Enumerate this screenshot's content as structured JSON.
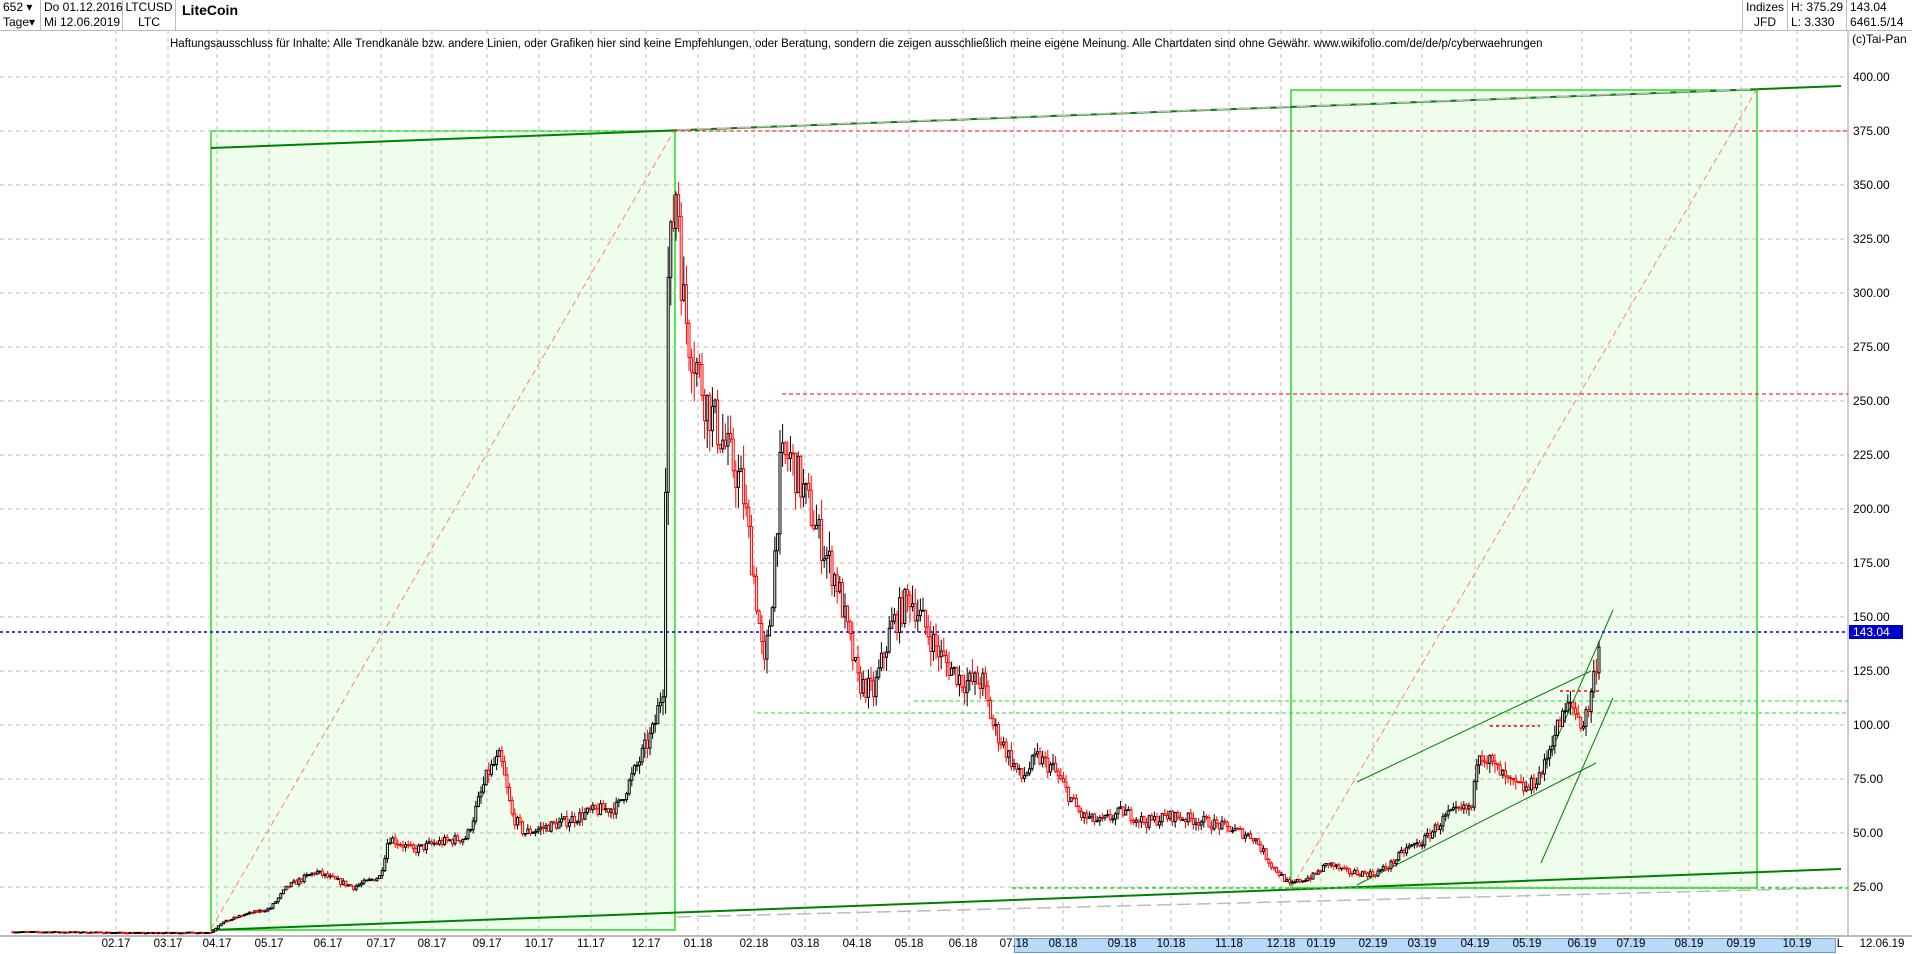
{
  "header": {
    "count_select": "652",
    "period_select": "Tage",
    "date_from": "Do 01.12.2016",
    "date_to": "Mi 12.06.2019",
    "symbol": "LTCUSD",
    "symbol_short": "LTC",
    "title": "LiteCoin",
    "category": "Indizes",
    "source": "JFD",
    "high": "H: 375.29",
    "low": "L: 3.330",
    "last": "143.04",
    "counter": "6461.5/14",
    "copyright": "(c)Tai-Pan"
  },
  "disclaimer": "Haftungsausschluss für Inhalte: Alle Trendkanäle bzw. andere Linien, oder Grafiken hier sind keine Empfehlungen, oder Beratung, sondern die zeigen ausschließlich meine eigene Meinung. Alle Chartdaten sind ohne Gewähr.  www.wikifolio.com/de/de/p/cyberwaehrungen",
  "colors": {
    "up": "#000000",
    "down": "#ff0000",
    "last_line": "#0000cc",
    "box_fill": "#eefdec",
    "box_border": "#22dd22",
    "trend": "#008000"
  },
  "chart_data": {
    "type": "candlestick",
    "ylim": [
      0,
      400
    ],
    "y_ticks": [
      "25.00",
      "50.00",
      "75.00",
      "100.00",
      "125.00",
      "150.00",
      "175.00",
      "200.00",
      "225.00",
      "250.00",
      "275.00",
      "300.00",
      "325.00",
      "350.00",
      "375.00",
      "400.00"
    ],
    "x_ticks": [
      "02.17",
      "03.17",
      "04.17",
      "05.17",
      "06.17",
      "07.17",
      "08.17",
      "09.17",
      "10.17",
      "11.17",
      "12.17",
      "01.18",
      "02.18",
      "03.18",
      "04.18",
      "05.18",
      "06.18",
      "07.18",
      "08.18",
      "09.18",
      "10.18",
      "11.18",
      "12.18",
      "01.19",
      "02.19",
      "03.19",
      "04.19",
      "05.19",
      "06.19",
      "07.19",
      "08.19",
      "09.19",
      "10.19"
    ],
    "x_end_label": "12.06.19",
    "x_scale_label": "L",
    "last_price": 143.04,
    "high": 375.29,
    "low": 3.33,
    "grid": true,
    "close_path": [
      [
        "2016-12-01",
        4.3
      ],
      [
        "2017-01-15",
        4.1
      ],
      [
        "2017-02-15",
        3.8
      ],
      [
        "2017-03-28",
        4.0
      ],
      [
        "2017-04-02",
        8
      ],
      [
        "2017-04-15",
        12
      ],
      [
        "2017-05-01",
        15
      ],
      [
        "2017-05-10",
        25
      ],
      [
        "2017-05-25",
        32
      ],
      [
        "2017-06-05",
        28
      ],
      [
        "2017-06-15",
        25
      ],
      [
        "2017-06-30",
        30
      ],
      [
        "2017-07-05",
        48
      ],
      [
        "2017-07-20",
        42
      ],
      [
        "2017-08-01",
        45
      ],
      [
        "2017-08-20",
        48
      ],
      [
        "2017-09-01",
        78
      ],
      [
        "2017-09-08",
        85
      ],
      [
        "2017-09-15",
        58
      ],
      [
        "2017-09-22",
        50
      ],
      [
        "2017-10-01",
        52
      ],
      [
        "2017-10-15",
        55
      ],
      [
        "2017-11-01",
        60
      ],
      [
        "2017-11-15",
        62
      ],
      [
        "2017-11-25",
        80
      ],
      [
        "2017-12-05",
        98
      ],
      [
        "2017-12-11",
        120
      ],
      [
        "2017-12-13",
        300
      ],
      [
        "2017-12-19",
        355
      ],
      [
        "2017-12-22",
        300
      ],
      [
        "2017-12-26",
        280
      ],
      [
        "2018-01-05",
        250
      ],
      [
        "2018-01-15",
        230
      ],
      [
        "2018-01-25",
        210
      ],
      [
        "2018-02-01",
        165
      ],
      [
        "2018-02-06",
        125
      ],
      [
        "2018-02-10",
        155
      ],
      [
        "2018-02-15",
        220
      ],
      [
        "2018-02-20",
        225
      ],
      [
        "2018-03-01",
        205
      ],
      [
        "2018-03-10",
        185
      ],
      [
        "2018-03-20",
        165
      ],
      [
        "2018-04-01",
        120
      ],
      [
        "2018-04-10",
        115
      ],
      [
        "2018-04-20",
        145
      ],
      [
        "2018-05-01",
        160
      ],
      [
        "2018-05-10",
        145
      ],
      [
        "2018-05-20",
        130
      ],
      [
        "2018-06-01",
        120
      ],
      [
        "2018-06-12",
        120
      ],
      [
        "2018-06-18",
        100
      ],
      [
        "2018-06-28",
        85
      ],
      [
        "2018-07-05",
        75
      ],
      [
        "2018-07-15",
        85
      ],
      [
        "2018-07-25",
        80
      ],
      [
        "2018-08-10",
        58
      ],
      [
        "2018-08-20",
        55
      ],
      [
        "2018-09-01",
        60
      ],
      [
        "2018-09-15",
        55
      ],
      [
        "2018-10-01",
        58
      ],
      [
        "2018-10-20",
        55
      ],
      [
        "2018-11-01",
        52
      ],
      [
        "2018-11-15",
        48
      ],
      [
        "2018-11-25",
        35
      ],
      [
        "2018-12-07",
        26
      ],
      [
        "2018-12-15",
        28
      ],
      [
        "2018-12-25",
        30
      ],
      [
        "2019-01-05",
        36
      ],
      [
        "2019-01-15",
        32
      ],
      [
        "2019-02-01",
        31
      ],
      [
        "2019-02-10",
        35
      ],
      [
        "2019-02-20",
        43
      ],
      [
        "2019-03-01",
        46
      ],
      [
        "2019-03-15",
        58
      ],
      [
        "2019-03-30",
        62
      ],
      [
        "2019-04-02",
        90
      ],
      [
        "2019-04-10",
        82
      ],
      [
        "2019-04-20",
        73
      ],
      [
        "2019-05-01",
        70
      ],
      [
        "2019-05-10",
        80
      ],
      [
        "2019-05-15",
        95
      ],
      [
        "2019-05-25",
        110
      ],
      [
        "2019-06-01",
        100
      ],
      [
        "2019-06-05",
        110
      ],
      [
        "2019-06-12",
        143.04
      ]
    ],
    "levels": [
      375.29,
      253.5,
      110.6,
      105,
      24.5,
      99.5
    ]
  }
}
